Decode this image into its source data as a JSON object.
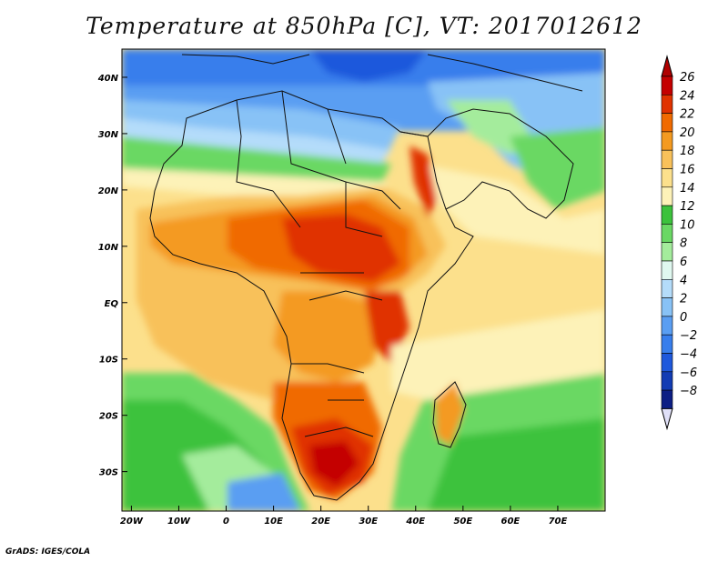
{
  "title": "Temperature at 850hPa [C], VT: 2017012612",
  "credit": "GrADS: IGES/COLA",
  "map": {
    "lon_range": [
      -22,
      80
    ],
    "lat_range": [
      -37,
      45
    ],
    "lat_ticks": [
      {
        "lat": 40,
        "label": "40N"
      },
      {
        "lat": 30,
        "label": "30N"
      },
      {
        "lat": 20,
        "label": "20N"
      },
      {
        "lat": 10,
        "label": "10N"
      },
      {
        "lat": 0,
        "label": "EQ"
      },
      {
        "lat": -10,
        "label": "10S"
      },
      {
        "lat": -20,
        "label": "20S"
      },
      {
        "lat": -30,
        "label": "30S"
      }
    ],
    "lon_ticks": [
      {
        "lon": -20,
        "label": "20W"
      },
      {
        "lon": -10,
        "label": "10W"
      },
      {
        "lon": 0,
        "label": "0"
      },
      {
        "lon": 10,
        "label": "10E"
      },
      {
        "lon": 20,
        "label": "20E"
      },
      {
        "lon": 30,
        "label": "30E"
      },
      {
        "lon": 40,
        "label": "40E"
      },
      {
        "lon": 50,
        "label": "50E"
      },
      {
        "lon": 60,
        "label": "60E"
      },
      {
        "lon": 70,
        "label": "70E"
      }
    ]
  },
  "colorbar": {
    "levels": [
      26,
      24,
      22,
      20,
      18,
      16,
      14,
      12,
      10,
      8,
      6,
      4,
      2,
      0,
      -2,
      -4,
      -6,
      -8
    ],
    "labels": [
      "26",
      "24",
      "22",
      "20",
      "18",
      "16",
      "14",
      "12",
      "10",
      "8",
      "6",
      "4",
      "2",
      "0",
      "−2",
      "−4",
      "−6",
      "−8"
    ],
    "colors": [
      "#c40000",
      "#e03200",
      "#f06a00",
      "#f49a20",
      "#f8c15a",
      "#fce08c",
      "#fdf2b8",
      "#3cc23c",
      "#6ad864",
      "#a4ec9c",
      "#e0f8f0",
      "#b4dcfa",
      "#88c2f6",
      "#5a9ef2",
      "#387eec",
      "#1e58dc",
      "#123cb4",
      "#0c1e84"
    ],
    "over_color": "#b00000",
    "under_color": "#e0e0f8"
  }
}
